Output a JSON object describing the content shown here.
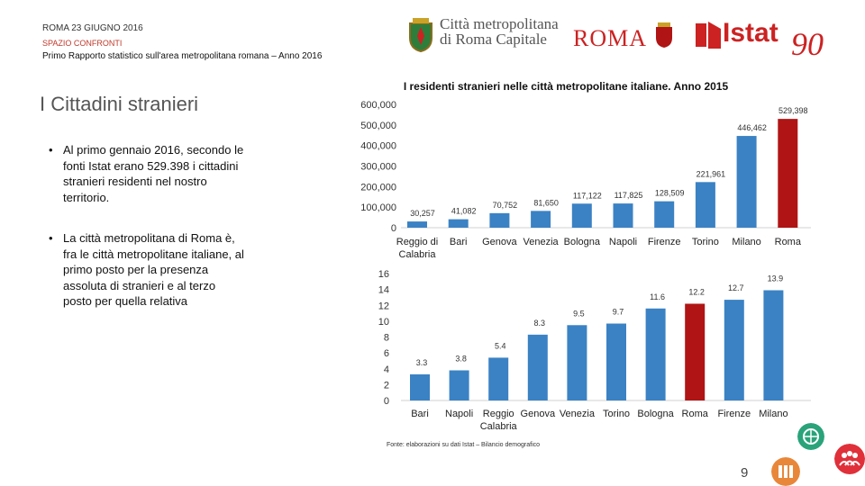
{
  "header": {
    "top": "ROMA 23 GIUGNO 2016",
    "section": "SPAZIO CONFRONTI",
    "subtitle": "Primo Rapporto statistico sull'area metropolitana romana – Anno 2016"
  },
  "logos": {
    "citta_line1": "Città metropolitana",
    "citta_line2": "di Roma Capitale",
    "roma": "ROMA",
    "istat": "Istat",
    "istat_90": "90"
  },
  "page_heading": "I Cittadini stranieri",
  "bullets": [
    "Al primo gennaio 2016, secondo le fonti Istat erano 529.398 i cittadini stranieri residenti nel nostro territorio.",
    "La città metropolitana di Roma è, fra le città metropolitane italiane, al primo posto per la presenza assoluta di stranieri e al terzo posto per quella relativa"
  ],
  "source": "Fonte: elaborazioni su dati Istat – Bilancio demografico",
  "page_number": "9",
  "colors": {
    "bar": "#3b82c4",
    "highlight": "#b01414",
    "red_brand": "#c22222"
  },
  "chart_data": [
    {
      "type": "bar",
      "title": "I residenti stranieri nelle città metropolitane italiane. Anno 2015",
      "categories": [
        "Reggio di Calabria",
        "Bari",
        "Genova",
        "Venezia",
        "Bologna",
        "Napoli",
        "Firenze",
        "Torino",
        "Milano",
        "Roma"
      ],
      "values": [
        30257,
        41082,
        70752,
        81650,
        117122,
        117825,
        128509,
        221961,
        446462,
        529398
      ],
      "value_labels": [
        "30,257",
        "41,082",
        "70,752",
        "81,650",
        "117,122",
        "117,825",
        "128,509",
        "221,961",
        "446,462",
        "529,398"
      ],
      "highlight": "Roma",
      "ylim": [
        0,
        600000
      ],
      "yticks": [
        "0",
        "100,000",
        "200,000",
        "300,000",
        "400,000",
        "500,000",
        "600,000"
      ],
      "grid": false
    },
    {
      "type": "bar",
      "title": "",
      "categories": [
        "Bari",
        "Napoli",
        "Reggio Calabria",
        "Genova",
        "Venezia",
        "Torino",
        "Bologna",
        "Roma",
        "Firenze",
        "Milano"
      ],
      "values": [
        3.3,
        3.8,
        5.4,
        8.3,
        9.5,
        9.7,
        11.6,
        12.2,
        12.7,
        13.9
      ],
      "value_labels": [
        "3.3",
        "3.8",
        "5.4",
        "8.3",
        "9.5",
        "9.7",
        "11.6",
        "12.2",
        "12.7",
        "13.9"
      ],
      "highlight": "Roma",
      "ylim": [
        0,
        16
      ],
      "yticks": [
        "0",
        "2",
        "4",
        "6",
        "8",
        "10",
        "12",
        "14",
        "16"
      ],
      "grid": false
    }
  ]
}
